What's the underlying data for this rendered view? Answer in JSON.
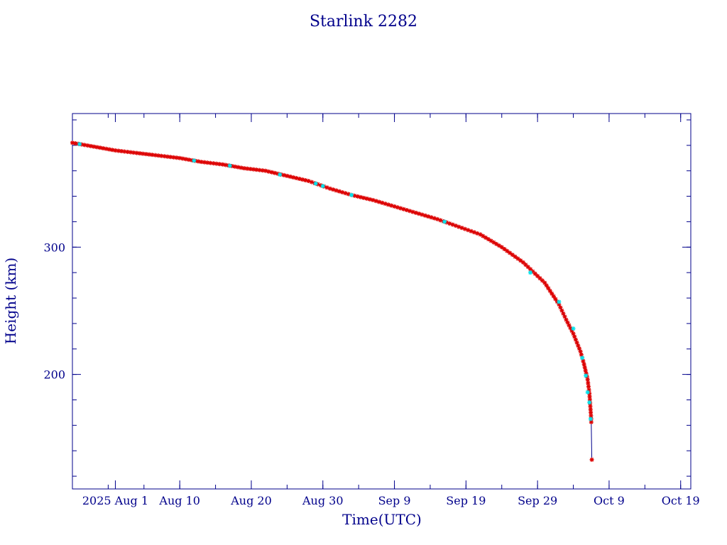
{
  "chart_data": {
    "type": "scatter",
    "title": "Starlink 2282",
    "xlabel": "Time(UTC)",
    "ylabel": "Height (km)",
    "x_tick_labels": [
      {
        "date": "2025-08-01",
        "label": "2025 Aug 1"
      },
      {
        "date": "2025-08-10",
        "label": "Aug 10"
      },
      {
        "date": "2025-08-20",
        "label": "Aug 20"
      },
      {
        "date": "2025-08-30",
        "label": "Aug 30"
      },
      {
        "date": "2025-09-09",
        "label": "Sep  9"
      },
      {
        "date": "2025-09-19",
        "label": "Sep 19"
      },
      {
        "date": "2025-09-29",
        "label": "Sep 29"
      },
      {
        "date": "2025-10-09",
        "label": "Oct  9"
      },
      {
        "date": "2025-10-19",
        "label": "Oct 19"
      }
    ],
    "y_tick_labels": [
      {
        "value": 200,
        "label": "200"
      },
      {
        "value": 300,
        "label": "300"
      }
    ],
    "xlim": [
      "2025-07-26",
      "2025-10-20T10:00"
    ],
    "ylim": [
      110,
      405
    ],
    "grid": false,
    "colors": {
      "axes": "#00008b",
      "trace": "#00008b",
      "primary_markers": "#dd0000",
      "secondary_markers": "#00e5ee"
    },
    "points": [
      {
        "date": "2025-07-26",
        "height": 382
      },
      {
        "date": "2025-07-29",
        "height": 379
      },
      {
        "date": "2025-08-01",
        "height": 376
      },
      {
        "date": "2025-08-04",
        "height": 374
      },
      {
        "date": "2025-08-07",
        "height": 372
      },
      {
        "date": "2025-08-10",
        "height": 370
      },
      {
        "date": "2025-08-13",
        "height": 367
      },
      {
        "date": "2025-08-16",
        "height": 365
      },
      {
        "date": "2025-08-19",
        "height": 362
      },
      {
        "date": "2025-08-22",
        "height": 360
      },
      {
        "date": "2025-08-25",
        "height": 356
      },
      {
        "date": "2025-08-28",
        "height": 352
      },
      {
        "date": "2025-08-31",
        "height": 346
      },
      {
        "date": "2025-09-03",
        "height": 341
      },
      {
        "date": "2025-09-06",
        "height": 337
      },
      {
        "date": "2025-09-09",
        "height": 332
      },
      {
        "date": "2025-09-12",
        "height": 327
      },
      {
        "date": "2025-09-15",
        "height": 322
      },
      {
        "date": "2025-09-18",
        "height": 316
      },
      {
        "date": "2025-09-21",
        "height": 310
      },
      {
        "date": "2025-09-24",
        "height": 300
      },
      {
        "date": "2025-09-27",
        "height": 288
      },
      {
        "date": "2025-09-30",
        "height": 272
      },
      {
        "date": "2025-10-02",
        "height": 255
      },
      {
        "date": "2025-10-03",
        "height": 243
      },
      {
        "date": "2025-10-04",
        "height": 232
      },
      {
        "date": "2025-10-05",
        "height": 218
      },
      {
        "date": "2025-10-05T12:00",
        "height": 208
      },
      {
        "date": "2025-10-06",
        "height": 196
      },
      {
        "date": "2025-10-06T06:00",
        "height": 185
      },
      {
        "date": "2025-10-06T12:00",
        "height": 165
      },
      {
        "date": "2025-10-06T14:00",
        "height": 133
      }
    ],
    "secondary_points": [
      {
        "date": "2025-07-27",
        "height": 381
      },
      {
        "date": "2025-08-12",
        "height": 368
      },
      {
        "date": "2025-08-17",
        "height": 364
      },
      {
        "date": "2025-08-24",
        "height": 357
      },
      {
        "date": "2025-08-29",
        "height": 350
      },
      {
        "date": "2025-08-30",
        "height": 348
      },
      {
        "date": "2025-09-03",
        "height": 341
      },
      {
        "date": "2025-09-16",
        "height": 320
      },
      {
        "date": "2025-09-28",
        "height": 280
      },
      {
        "date": "2025-10-02",
        "height": 257
      },
      {
        "date": "2025-10-04",
        "height": 236
      },
      {
        "date": "2025-10-05T06:00",
        "height": 213
      },
      {
        "date": "2025-10-05T18:00",
        "height": 199
      },
      {
        "date": "2025-10-06",
        "height": 186
      },
      {
        "date": "2025-10-06T06:00",
        "height": 178
      },
      {
        "date": "2025-10-06T10:00",
        "height": 165
      }
    ]
  }
}
